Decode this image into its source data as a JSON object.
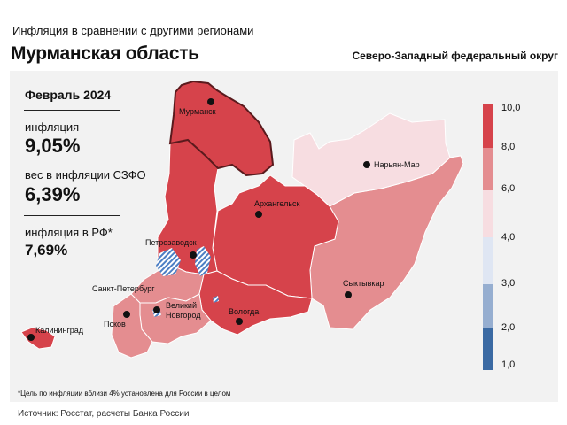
{
  "header": {
    "subtitle": "Инфляция в сравнении с другими регионами",
    "region": "Мурманская область",
    "district": "Северо-Западный федеральный округ"
  },
  "stats": {
    "period": "Февраль 2024",
    "inflation_label": "инфляция",
    "inflation_value": "9,05%",
    "weight_label": "вес в инфляции СЗФО",
    "weight_value": "6,39%",
    "rf_label": "инфляция в РФ*",
    "rf_value": "7,69%"
  },
  "legend": {
    "ticks": [
      "10,0",
      "8,0",
      "6,0",
      "4,0",
      "3,0",
      "2,0",
      "1,0"
    ],
    "colors": [
      "#d6434b",
      "#e48d90",
      "#f7dde1",
      "#dfe6f3",
      "#96aed0",
      "#3b6aa3"
    ]
  },
  "cities": {
    "murmansk": "Мурманск",
    "naryan_mar": "Нарьян-Мар",
    "arkhangelsk": "Архангельск",
    "petrozavodsk": "Петрозаводск",
    "syktyvkar": "Сыктывкар",
    "spb": "Санкт-Петербург",
    "vnovgorod": "Великий\nНовгород",
    "pskov": "Псков",
    "vologda": "Вологда",
    "kaliningrad": "Калининград"
  },
  "footnote": "*Цель по инфляции вблизи 4% установлена для России в целом",
  "source": "Источник: Росстат, расчеты Банка России"
}
